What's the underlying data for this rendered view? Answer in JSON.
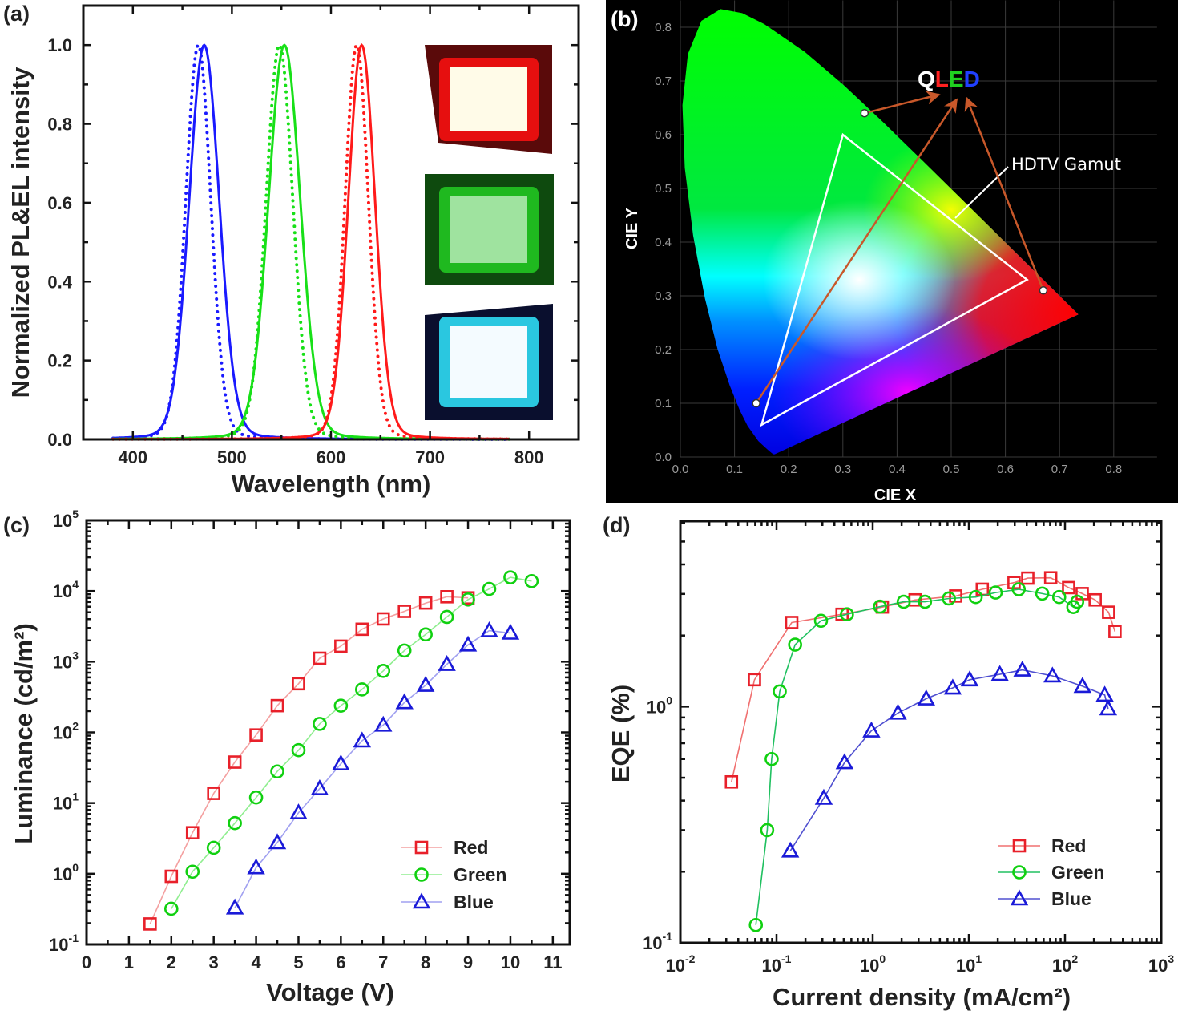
{
  "figure": {
    "panel_labels": [
      "(a)",
      "(b)",
      "(c)",
      "(d)"
    ]
  },
  "chart_data": [
    {
      "panel": "(a)",
      "type": "line",
      "xlabel": "Wavelength (nm)",
      "ylabel": "Normalized PL&EL intensity",
      "xlim": [
        350,
        850
      ],
      "ylim": [
        0,
        1.1
      ],
      "xticks": [
        400,
        500,
        600,
        700,
        800
      ],
      "yticks": [
        0.0,
        0.2,
        0.4,
        0.6,
        0.8,
        1.0
      ],
      "series": [
        {
          "color": "#1a1aff",
          "style": "dotted",
          "peak_nm": 466,
          "fwhm_nm": 30
        },
        {
          "color": "#1a1aff",
          "style": "solid",
          "peak_nm": 472,
          "fwhm_nm": 36
        },
        {
          "color": "#18e018",
          "style": "dotted",
          "peak_nm": 548,
          "fwhm_nm": 32
        },
        {
          "color": "#18e018",
          "style": "solid",
          "peak_nm": 553,
          "fwhm_nm": 38
        },
        {
          "color": "#ff1a1a",
          "style": "dotted",
          "peak_nm": 626,
          "fwhm_nm": 28
        },
        {
          "color": "#ff1a1a",
          "style": "solid",
          "peak_nm": 631,
          "fwhm_nm": 32
        }
      ],
      "inset_photos": [
        {
          "device": "red",
          "glow": "#ff1010",
          "frame": "#5a0a0a",
          "center": "#fffbe8"
        },
        {
          "device": "green",
          "glow": "#22cc22",
          "frame": "#0e4a0e",
          "center": "#9fe39f"
        },
        {
          "device": "blue",
          "glow": "#30e8ff",
          "frame": "#0a0f2e",
          "center": "#f4fbff"
        }
      ]
    },
    {
      "panel": "(b)",
      "type": "scatter",
      "xlabel": "CIE X",
      "ylabel": "CIE Y",
      "xlim": [
        0,
        0.8
      ],
      "ylim": [
        0,
        0.8
      ],
      "xticks": [
        "0.0",
        "0.1",
        "0.2",
        "0.3",
        "0.4",
        "0.5",
        "0.6",
        "0.7",
        "0.8"
      ],
      "yticks": [
        "0.0",
        "0.1",
        "0.2",
        "0.3",
        "0.4",
        "0.5",
        "0.6",
        "0.7",
        "0.8"
      ],
      "grid": true,
      "background": "#000000",
      "points": [
        {
          "device": "green",
          "x": 0.34,
          "y": 0.64
        },
        {
          "device": "blue",
          "x": 0.14,
          "y": 0.1
        },
        {
          "device": "red",
          "x": 0.67,
          "y": 0.31
        }
      ],
      "gamut_label": "HDTV Gamut",
      "gamut_triangle": [
        [
          0.64,
          0.33
        ],
        [
          0.3,
          0.6
        ],
        [
          0.15,
          0.06
        ]
      ],
      "annotation": {
        "letters": [
          {
            "char": "Q",
            "color": "#ffffff"
          },
          {
            "char": "L",
            "color": "#ff2020"
          },
          {
            "char": "E",
            "color": "#20d020"
          },
          {
            "char": "D",
            "color": "#2040ff"
          }
        ],
        "arrow_color": "#c8582a"
      }
    },
    {
      "panel": "(c)",
      "type": "line",
      "xlabel": "Voltage (V)",
      "ylabel": "Luminance (cd/m²)",
      "xlim": [
        0,
        11.4
      ],
      "ylim": [
        0.1,
        100000
      ],
      "yscale": "log",
      "xticks": [
        0,
        1,
        2,
        3,
        4,
        5,
        6,
        7,
        8,
        9,
        10,
        11
      ],
      "yticks": [
        0.1,
        1,
        10,
        100,
        1000,
        10000,
        100000
      ],
      "legend": "bottom-right",
      "series": [
        {
          "name": "Red",
          "color": "#e8202a",
          "line": "#f4a0a0",
          "marker": "square",
          "x": [
            1.5,
            2,
            2.5,
            3,
            3.5,
            4,
            4.5,
            5,
            5.5,
            6,
            6.5,
            7,
            7.5,
            8,
            8.5,
            9
          ],
          "y": [
            0.195,
            0.92,
            3.8,
            13.7,
            38,
            92,
            239,
            488,
            1120,
            1660,
            2880,
            4030,
            5160,
            6760,
            8300,
            8000
          ]
        },
        {
          "name": "Green",
          "color": "#10d010",
          "line": "#90ee90",
          "marker": "circle",
          "x": [
            2,
            2.5,
            3,
            3.5,
            4,
            4.5,
            5,
            5.5,
            6,
            6.5,
            7,
            7.5,
            8,
            8.5,
            9,
            9.5,
            10,
            10.5
          ],
          "y": [
            0.32,
            1.07,
            2.33,
            5.2,
            12,
            28,
            56,
            132,
            239,
            405,
            741,
            1440,
            2430,
            4300,
            7570,
            10700,
            15600,
            13800
          ]
        },
        {
          "name": "Blue",
          "color": "#1a1ad8",
          "line": "#a0a0f0",
          "marker": "triangle",
          "x": [
            3.5,
            4,
            4.5,
            5,
            5.5,
            6,
            6.5,
            7,
            7.5,
            8,
            8.5,
            9,
            9.5,
            10
          ],
          "y": [
            0.33,
            1.22,
            2.76,
            7.3,
            16,
            36,
            76,
            127,
            265,
            466,
            918,
            1730,
            2750,
            2550
          ]
        }
      ]
    },
    {
      "panel": "(d)",
      "type": "line",
      "xlabel": "Current density (mA/cm²)",
      "ylabel": "EQE (%)",
      "xlim": [
        0.01,
        1000
      ],
      "ylim": [
        0.1,
        6.1
      ],
      "xscale": "log",
      "yscale": "log",
      "xticks": [
        0.01,
        0.1,
        1,
        10,
        100,
        1000
      ],
      "yticks": [
        0.1,
        1
      ],
      "legend": "bottom-right",
      "series": [
        {
          "name": "Red",
          "color": "#e8202a",
          "line": "#f07070",
          "marker": "square",
          "x": [
            0.034,
            0.059,
            0.144,
            0.48,
            1.26,
            2.76,
            7.3,
            13.8,
            29.5,
            41,
            71,
            109,
            151,
            206,
            284,
            331
          ],
          "y": [
            0.48,
            1.3,
            2.27,
            2.46,
            2.64,
            2.83,
            2.94,
            3.14,
            3.35,
            3.5,
            3.51,
            3.19,
            3.01,
            2.83,
            2.51,
            2.08
          ]
        },
        {
          "name": "Green",
          "color": "#10d010",
          "line": "#20c060",
          "marker": "circle",
          "x": [
            0.061,
            0.08,
            0.089,
            0.108,
            0.156,
            0.29,
            0.54,
            1.19,
            2.1,
            3.5,
            6.2,
            11.8,
            19,
            33,
            58,
            87,
            122,
            134
          ],
          "y": [
            0.119,
            0.3,
            0.6,
            1.16,
            1.83,
            2.31,
            2.46,
            2.65,
            2.78,
            2.78,
            2.87,
            2.91,
            3.04,
            3.14,
            3.01,
            2.91,
            2.64,
            2.78
          ]
        },
        {
          "name": "Blue",
          "color": "#1a1ad8",
          "line": "#5050d0",
          "marker": "triangle",
          "x": [
            0.139,
            0.31,
            0.51,
            0.97,
            1.83,
            3.6,
            6.8,
            10.2,
            21,
            36,
            74,
            152,
            259,
            281
          ],
          "y": [
            0.245,
            0.41,
            0.58,
            0.79,
            0.94,
            1.08,
            1.2,
            1.3,
            1.37,
            1.43,
            1.35,
            1.22,
            1.12,
            0.98
          ]
        }
      ]
    }
  ]
}
